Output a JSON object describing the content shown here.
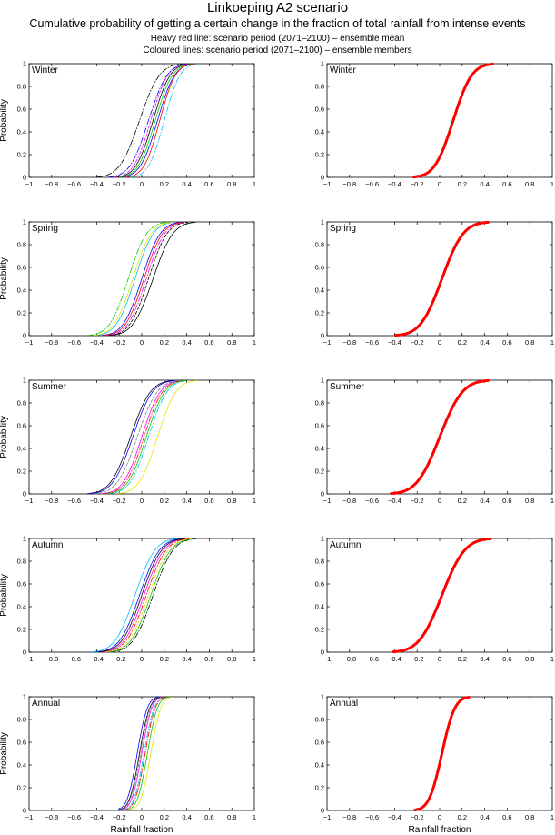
{
  "header": {
    "title": "Linkoeping A2 scenario",
    "subtitle": "Cumulative probability of getting a certain change in the fraction of total rainfall from intense events",
    "line1": "Heavy red line: scenario period (2071–2100) – ensemble mean",
    "line2": "Coloured lines: scenario period (2071–2100) – ensemble members"
  },
  "axes": {
    "xlabel": "Rainfall fraction",
    "ylabel": "Probability",
    "xticks": [
      "−1",
      "−0.8",
      "−0.6",
      "−0.4",
      "−0.2",
      "0",
      "0.2",
      "0.4",
      "0.6",
      "0.8",
      "1"
    ],
    "yticks": [
      "0",
      "0.2",
      "0.4",
      "0.6",
      "0.8",
      "1"
    ],
    "xlim": [
      -1,
      1
    ],
    "ylim": [
      0,
      1
    ]
  },
  "colors": {
    "mean": "#ff0000",
    "members": [
      "#000000",
      "#0000ff",
      "#00bfff",
      "#00cc00",
      "#ff00ff",
      "#ff0000",
      "#e6e600",
      "#7f7f7f"
    ]
  },
  "chart_data": [
    {
      "type": "line",
      "panel": "members",
      "season": "Winter",
      "title": "Winter",
      "xlabel": "",
      "ylabel": "Probability",
      "series": [
        {
          "name": "member 1",
          "color": "#000000",
          "dash": "",
          "center": 0.1,
          "spread": 0.12
        },
        {
          "name": "member 2",
          "color": "#000000",
          "dash": "6,2,1,2",
          "center": -0.02,
          "spread": 0.14
        },
        {
          "name": "member 3",
          "color": "#0000ff",
          "dash": "",
          "center": 0.14,
          "spread": 0.12
        },
        {
          "name": "member 4",
          "color": "#00bfff",
          "dash": "6,2,1,2",
          "center": 0.2,
          "spread": 0.11
        },
        {
          "name": "member 5",
          "color": "#00cc00",
          "dash": "",
          "center": 0.12,
          "spread": 0.12
        },
        {
          "name": "member 6",
          "color": "#ff00ff",
          "dash": "3,2",
          "center": 0.08,
          "spread": 0.12
        },
        {
          "name": "member 7",
          "color": "#ff0000",
          "dash": "",
          "center": 0.16,
          "spread": 0.11
        },
        {
          "name": "member 8",
          "color": "#0000ff",
          "dash": "6,2,1,2",
          "center": 0.06,
          "spread": 0.13
        }
      ]
    },
    {
      "type": "line",
      "panel": "mean",
      "season": "Winter",
      "title": "Winter",
      "xlabel": "",
      "ylabel": "",
      "series": [
        {
          "name": "ensemble mean",
          "color": "#ff0000",
          "center": 0.12,
          "spread": 0.13
        }
      ]
    },
    {
      "type": "line",
      "panel": "members",
      "season": "Spring",
      "title": "Spring",
      "xlabel": "",
      "ylabel": "Probability",
      "series": [
        {
          "name": "member 1",
          "color": "#000000",
          "dash": "",
          "center": 0.1,
          "spread": 0.14
        },
        {
          "name": "member 2",
          "color": "#00cc00",
          "dash": "6,2,1,2",
          "center": -0.12,
          "spread": 0.13
        },
        {
          "name": "member 3",
          "color": "#00bfff",
          "dash": "",
          "center": -0.06,
          "spread": 0.13
        },
        {
          "name": "member 4",
          "color": "#0000ff",
          "dash": "",
          "center": 0.0,
          "spread": 0.13
        },
        {
          "name": "member 5",
          "color": "#ff00ff",
          "dash": "6,2,1,2",
          "center": 0.04,
          "spread": 0.13
        },
        {
          "name": "member 6",
          "color": "#ff0000",
          "dash": "",
          "center": 0.02,
          "spread": 0.13
        },
        {
          "name": "member 7",
          "color": "#000000",
          "dash": "3,2",
          "center": 0.06,
          "spread": 0.13
        },
        {
          "name": "member 8",
          "color": "#e6e600",
          "dash": "",
          "center": -0.08,
          "spread": 0.13
        }
      ]
    },
    {
      "type": "line",
      "panel": "mean",
      "season": "Spring",
      "title": "Spring",
      "xlabel": "",
      "ylabel": "",
      "series": [
        {
          "name": "ensemble mean",
          "color": "#ff0000",
          "center": 0.02,
          "spread": 0.15
        }
      ]
    },
    {
      "type": "line",
      "panel": "members",
      "season": "Summer",
      "title": "Summer",
      "xlabel": "",
      "ylabel": "Probability",
      "series": [
        {
          "name": "member 1",
          "color": "#000000",
          "dash": "",
          "center": -0.1,
          "spread": 0.14
        },
        {
          "name": "member 2",
          "color": "#0000ff",
          "dash": "",
          "center": -0.08,
          "spread": 0.14
        },
        {
          "name": "member 3",
          "color": "#e6e600",
          "dash": "",
          "center": 0.14,
          "spread": 0.13
        },
        {
          "name": "member 4",
          "color": "#00bfff",
          "dash": "6,2,1,2",
          "center": 0.06,
          "spread": 0.13
        },
        {
          "name": "member 5",
          "color": "#ff00ff",
          "dash": "",
          "center": 0.0,
          "spread": 0.13
        },
        {
          "name": "member 6",
          "color": "#ff0000",
          "dash": "6,2,1,2",
          "center": 0.02,
          "spread": 0.13
        },
        {
          "name": "member 7",
          "color": "#00cc00",
          "dash": "",
          "center": 0.04,
          "spread": 0.13
        },
        {
          "name": "member 8",
          "color": "#7f7f7f",
          "dash": "3,2",
          "center": -0.04,
          "spread": 0.14
        }
      ]
    },
    {
      "type": "line",
      "panel": "mean",
      "season": "Summer",
      "title": "Summer",
      "xlabel": "",
      "ylabel": "",
      "series": [
        {
          "name": "ensemble mean",
          "color": "#ff0000",
          "center": 0.0,
          "spread": 0.16
        }
      ]
    },
    {
      "type": "line",
      "panel": "members",
      "season": "Autumn",
      "title": "Autumn",
      "xlabel": "",
      "ylabel": "Probability",
      "series": [
        {
          "name": "member 1",
          "color": "#00bfff",
          "dash": "",
          "center": -0.06,
          "spread": 0.14
        },
        {
          "name": "member 2",
          "color": "#0000ff",
          "dash": "",
          "center": -0.02,
          "spread": 0.14
        },
        {
          "name": "member 3",
          "color": "#000000",
          "dash": "6,2,1,2",
          "center": 0.1,
          "spread": 0.14
        },
        {
          "name": "member 4",
          "color": "#00cc00",
          "dash": "",
          "center": 0.08,
          "spread": 0.14
        },
        {
          "name": "member 5",
          "color": "#ff00ff",
          "dash": "",
          "center": 0.02,
          "spread": 0.14
        },
        {
          "name": "member 6",
          "color": "#ff0000",
          "dash": "6,2,1,2",
          "center": 0.04,
          "spread": 0.14
        },
        {
          "name": "member 7",
          "color": "#000000",
          "dash": "",
          "center": 0.0,
          "spread": 0.14
        },
        {
          "name": "member 8",
          "color": "#e6e600",
          "dash": "3,2",
          "center": 0.06,
          "spread": 0.14
        }
      ]
    },
    {
      "type": "line",
      "panel": "mean",
      "season": "Autumn",
      "title": "Autumn",
      "xlabel": "",
      "ylabel": "",
      "series": [
        {
          "name": "ensemble mean",
          "color": "#ff0000",
          "center": 0.02,
          "spread": 0.16
        }
      ]
    },
    {
      "type": "line",
      "panel": "members",
      "season": "Annual",
      "title": "Annual",
      "xlabel": "Rainfall fraction",
      "ylabel": "Probability",
      "series": [
        {
          "name": "member 1",
          "color": "#000000",
          "dash": "",
          "center": -0.02,
          "spread": 0.07
        },
        {
          "name": "member 2",
          "color": "#0000ff",
          "dash": "",
          "center": -0.04,
          "spread": 0.07
        },
        {
          "name": "member 3",
          "color": "#e6e600",
          "dash": "",
          "center": 0.08,
          "spread": 0.07
        },
        {
          "name": "member 4",
          "color": "#00bfff",
          "dash": "6,2,1,2",
          "center": 0.02,
          "spread": 0.07
        },
        {
          "name": "member 5",
          "color": "#ff00ff",
          "dash": "",
          "center": 0.0,
          "spread": 0.07
        },
        {
          "name": "member 6",
          "color": "#ff0000",
          "dash": "6,2,1,2",
          "center": 0.03,
          "spread": 0.07
        },
        {
          "name": "member 7",
          "color": "#00cc00",
          "dash": "",
          "center": 0.05,
          "spread": 0.07
        },
        {
          "name": "member 8",
          "color": "#7f7f7f",
          "dash": "3,2",
          "center": -0.01,
          "spread": 0.07
        }
      ]
    },
    {
      "type": "line",
      "panel": "mean",
      "season": "Annual",
      "title": "Annual",
      "xlabel": "Rainfall fraction",
      "ylabel": "",
      "series": [
        {
          "name": "ensemble mean",
          "color": "#ff0000",
          "center": 0.02,
          "spread": 0.09
        }
      ]
    }
  ]
}
